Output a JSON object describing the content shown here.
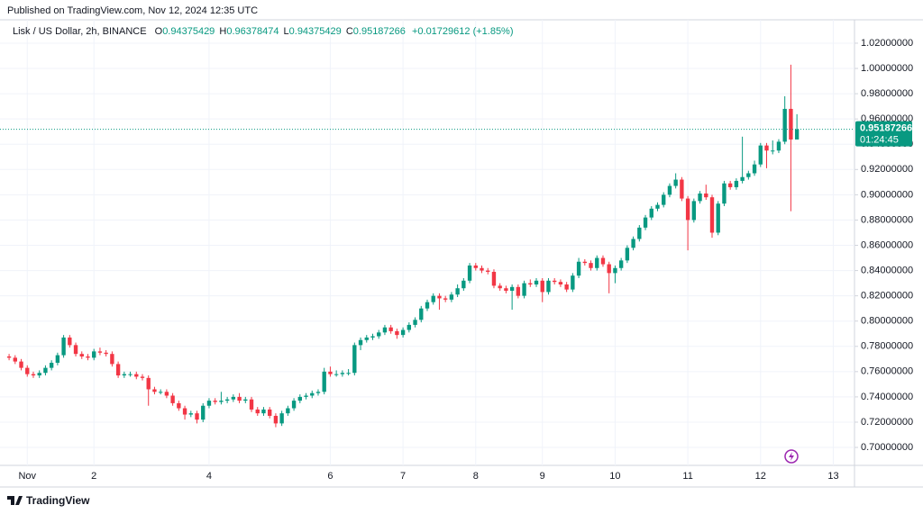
{
  "header": {
    "published": "Published on TradingView.com, Nov 12, 2024 12:35 UTC"
  },
  "footer": {
    "brand": "TradingView"
  },
  "chart_data": {
    "type": "candlestick",
    "symbol": "Lisk / US Dollar, 2h, BINANCE",
    "ohlc_labels": [
      "O",
      "H",
      "L",
      "C"
    ],
    "change": "+0.01729612 (+1.85%)",
    "countdown": "01:24:45",
    "up_color": "#089981",
    "down_color": "#f23645",
    "grid": true,
    "xlim": [
      -1.5,
      139.5
    ],
    "xticks": [
      {
        "value": 3,
        "label": "Nov"
      },
      {
        "value": 14,
        "label": "2"
      },
      {
        "value": 33,
        "label": "4"
      },
      {
        "value": 53,
        "label": "6"
      },
      {
        "value": 65,
        "label": "7"
      },
      {
        "value": 77,
        "label": "8"
      },
      {
        "value": 88,
        "label": "9"
      },
      {
        "value": 100,
        "label": "10"
      },
      {
        "value": 112,
        "label": "11"
      },
      {
        "value": 124,
        "label": "12"
      },
      {
        "value": 136,
        "label": "13"
      }
    ],
    "ylim": [
      0.6872,
      1.0328
    ],
    "yticks": [
      {
        "value": 0.7,
        "label": "0.70000000"
      },
      {
        "value": 0.72,
        "label": "0.72000000"
      },
      {
        "value": 0.74,
        "label": "0.74000000"
      },
      {
        "value": 0.76,
        "label": "0.76000000"
      },
      {
        "value": 0.78,
        "label": "0.78000000"
      },
      {
        "value": 0.8,
        "label": "0.80000000"
      },
      {
        "value": 0.82,
        "label": "0.82000000"
      },
      {
        "value": 0.84,
        "label": "0.84000000"
      },
      {
        "value": 0.86,
        "label": "0.86000000"
      },
      {
        "value": 0.88,
        "label": "0.88000000"
      },
      {
        "value": 0.9,
        "label": "0.90000000"
      },
      {
        "value": 0.92,
        "label": "0.92000000"
      },
      {
        "value": 0.94,
        "label": "0.94000000"
      },
      {
        "value": 0.96,
        "label": "0.96000000"
      },
      {
        "value": 0.98,
        "label": "0.98000000"
      },
      {
        "value": 1.0,
        "label": "1.00000000"
      },
      {
        "value": 1.02,
        "label": "1.02000000"
      }
    ],
    "open": [
      0.772,
      0.771,
      0.768,
      0.763,
      0.758,
      0.757,
      0.759,
      0.763,
      0.767,
      0.773,
      0.787,
      0.781,
      0.774,
      0.772,
      0.771,
      0.776,
      0.775,
      0.774,
      0.766,
      0.757,
      0.758,
      0.758,
      0.756,
      0.755,
      0.746,
      0.744,
      0.744,
      0.741,
      0.735,
      0.731,
      0.726,
      0.727,
      0.722,
      0.733,
      0.737,
      0.736,
      0.737,
      0.738,
      0.74,
      0.737,
      0.738,
      0.73,
      0.727,
      0.73,
      0.725,
      0.719,
      0.727,
      0.731,
      0.737,
      0.74,
      0.741,
      0.743,
      0.744,
      0.76,
      0.758,
      0.758,
      0.759,
      0.759,
      0.781,
      0.785,
      0.787,
      0.788,
      0.791,
      0.795,
      0.792,
      0.789,
      0.793,
      0.797,
      0.801,
      0.81,
      0.815,
      0.82,
      0.818,
      0.817,
      0.821,
      0.826,
      0.832,
      0.844,
      0.842,
      0.84,
      0.839,
      0.828,
      0.826,
      0.824,
      0.827,
      0.82,
      0.83,
      0.829,
      0.832,
      0.823,
      0.832,
      0.831,
      0.829,
      0.825,
      0.836,
      0.847,
      0.846,
      0.842,
      0.85,
      0.845,
      0.838,
      0.842,
      0.848,
      0.858,
      0.865,
      0.874,
      0.882,
      0.889,
      0.892,
      0.9,
      0.907,
      0.912,
      0.897,
      0.88,
      0.895,
      0.901,
      0.898,
      0.87,
      0.893,
      0.909,
      0.906,
      0.911,
      0.914,
      0.917,
      0.924,
      0.939,
      0.935,
      0.935,
      0.942,
      0.968,
      0.94375429
    ],
    "high": [
      0.774,
      0.773,
      0.77,
      0.765,
      0.76,
      0.761,
      0.765,
      0.769,
      0.775,
      0.789,
      0.789,
      0.783,
      0.776,
      0.774,
      0.778,
      0.779,
      0.777,
      0.776,
      0.768,
      0.76,
      0.76,
      0.76,
      0.758,
      0.757,
      0.748,
      0.746,
      0.746,
      0.743,
      0.737,
      0.733,
      0.729,
      0.729,
      0.735,
      0.739,
      0.739,
      0.744,
      0.74,
      0.742,
      0.743,
      0.74,
      0.74,
      0.732,
      0.732,
      0.732,
      0.727,
      0.729,
      0.733,
      0.739,
      0.742,
      0.743,
      0.745,
      0.746,
      0.763,
      0.764,
      0.761,
      0.761,
      0.762,
      0.783,
      0.787,
      0.789,
      0.79,
      0.793,
      0.797,
      0.797,
      0.794,
      0.795,
      0.799,
      0.803,
      0.812,
      0.817,
      0.822,
      0.822,
      0.82,
      0.823,
      0.829,
      0.834,
      0.846,
      0.846,
      0.844,
      0.842,
      0.841,
      0.83,
      0.828,
      0.829,
      0.829,
      0.832,
      0.833,
      0.834,
      0.834,
      0.834,
      0.834,
      0.833,
      0.831,
      0.838,
      0.85,
      0.849,
      0.848,
      0.852,
      0.852,
      0.847,
      0.844,
      0.85,
      0.86,
      0.867,
      0.876,
      0.884,
      0.891,
      0.894,
      0.902,
      0.909,
      0.917,
      0.914,
      0.899,
      0.897,
      0.903,
      0.908,
      0.9,
      0.895,
      0.911,
      0.911,
      0.913,
      0.946,
      0.919,
      0.927,
      0.941,
      0.941,
      0.943,
      0.944,
      0.978,
      1.003,
      0.96378474
    ],
    "low": [
      0.769,
      0.766,
      0.761,
      0.756,
      0.755,
      0.755,
      0.757,
      0.761,
      0.765,
      0.771,
      0.779,
      0.772,
      0.77,
      0.769,
      0.769,
      0.773,
      0.772,
      0.764,
      0.755,
      0.755,
      0.756,
      0.754,
      0.753,
      0.733,
      0.742,
      0.742,
      0.739,
      0.733,
      0.729,
      0.722,
      0.724,
      0.719,
      0.72,
      0.731,
      0.734,
      0.734,
      0.735,
      0.736,
      0.735,
      0.735,
      0.728,
      0.725,
      0.725,
      0.723,
      0.716,
      0.717,
      0.725,
      0.729,
      0.735,
      0.738,
      0.739,
      0.741,
      0.742,
      0.756,
      0.756,
      0.756,
      0.757,
      0.757,
      0.777,
      0.783,
      0.785,
      0.786,
      0.789,
      0.79,
      0.786,
      0.787,
      0.791,
      0.795,
      0.799,
      0.808,
      0.813,
      0.809,
      0.815,
      0.815,
      0.819,
      0.824,
      0.83,
      0.84,
      0.838,
      0.837,
      0.826,
      0.824,
      0.822,
      0.809,
      0.818,
      0.818,
      0.827,
      0.827,
      0.815,
      0.821,
      0.829,
      0.827,
      0.823,
      0.823,
      0.834,
      0.844,
      0.84,
      0.84,
      0.843,
      0.822,
      0.83,
      0.84,
      0.846,
      0.856,
      0.863,
      0.872,
      0.88,
      0.887,
      0.89,
      0.898,
      0.905,
      0.895,
      0.856,
      0.878,
      0.893,
      0.896,
      0.866,
      0.868,
      0.891,
      0.904,
      0.904,
      0.909,
      0.912,
      0.915,
      0.922,
      0.921,
      0.932,
      0.933,
      0.94,
      0.887,
      0.94375429
    ],
    "close": [
      0.771,
      0.768,
      0.763,
      0.758,
      0.757,
      0.759,
      0.763,
      0.767,
      0.773,
      0.787,
      0.781,
      0.774,
      0.772,
      0.771,
      0.776,
      0.775,
      0.774,
      0.766,
      0.757,
      0.758,
      0.758,
      0.756,
      0.755,
      0.746,
      0.744,
      0.744,
      0.741,
      0.735,
      0.731,
      0.726,
      0.727,
      0.722,
      0.733,
      0.737,
      0.736,
      0.737,
      0.738,
      0.74,
      0.737,
      0.738,
      0.73,
      0.727,
      0.73,
      0.725,
      0.719,
      0.727,
      0.731,
      0.737,
      0.74,
      0.741,
      0.743,
      0.744,
      0.76,
      0.758,
      0.758,
      0.759,
      0.759,
      0.781,
      0.785,
      0.787,
      0.788,
      0.791,
      0.795,
      0.792,
      0.789,
      0.793,
      0.797,
      0.801,
      0.81,
      0.815,
      0.82,
      0.818,
      0.817,
      0.821,
      0.826,
      0.832,
      0.844,
      0.842,
      0.84,
      0.839,
      0.828,
      0.826,
      0.824,
      0.827,
      0.82,
      0.83,
      0.829,
      0.832,
      0.823,
      0.832,
      0.831,
      0.829,
      0.825,
      0.836,
      0.847,
      0.846,
      0.842,
      0.85,
      0.845,
      0.838,
      0.842,
      0.848,
      0.858,
      0.865,
      0.874,
      0.882,
      0.889,
      0.892,
      0.9,
      0.907,
      0.912,
      0.897,
      0.88,
      0.895,
      0.901,
      0.898,
      0.87,
      0.893,
      0.909,
      0.906,
      0.911,
      0.914,
      0.917,
      0.924,
      0.939,
      0.935,
      0.935,
      0.942,
      0.968,
      0.94375429,
      0.95187266
    ]
  }
}
